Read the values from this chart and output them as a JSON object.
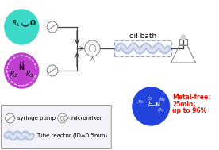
{
  "bg_color": "#ffffff",
  "cyan_ball_color": "#3dd9c8",
  "purple_ball_color": "#c040d0",
  "blue_ball_color": "#2244dd",
  "oil_bath_box_color": "#99aacc",
  "tube_color": "#aabbdd",
  "red_text_color": "#ee1100",
  "gray_line": "#444444",
  "title_oilbath": "oil bath",
  "legend_syringe": "syringe pump",
  "legend_mixer": "micromixer",
  "legend_tube": "Tube reactor (ID=0.5mm)",
  "result_line1": "Metal-free;",
  "result_line2": "25min;",
  "result_line3": "up to 96%"
}
